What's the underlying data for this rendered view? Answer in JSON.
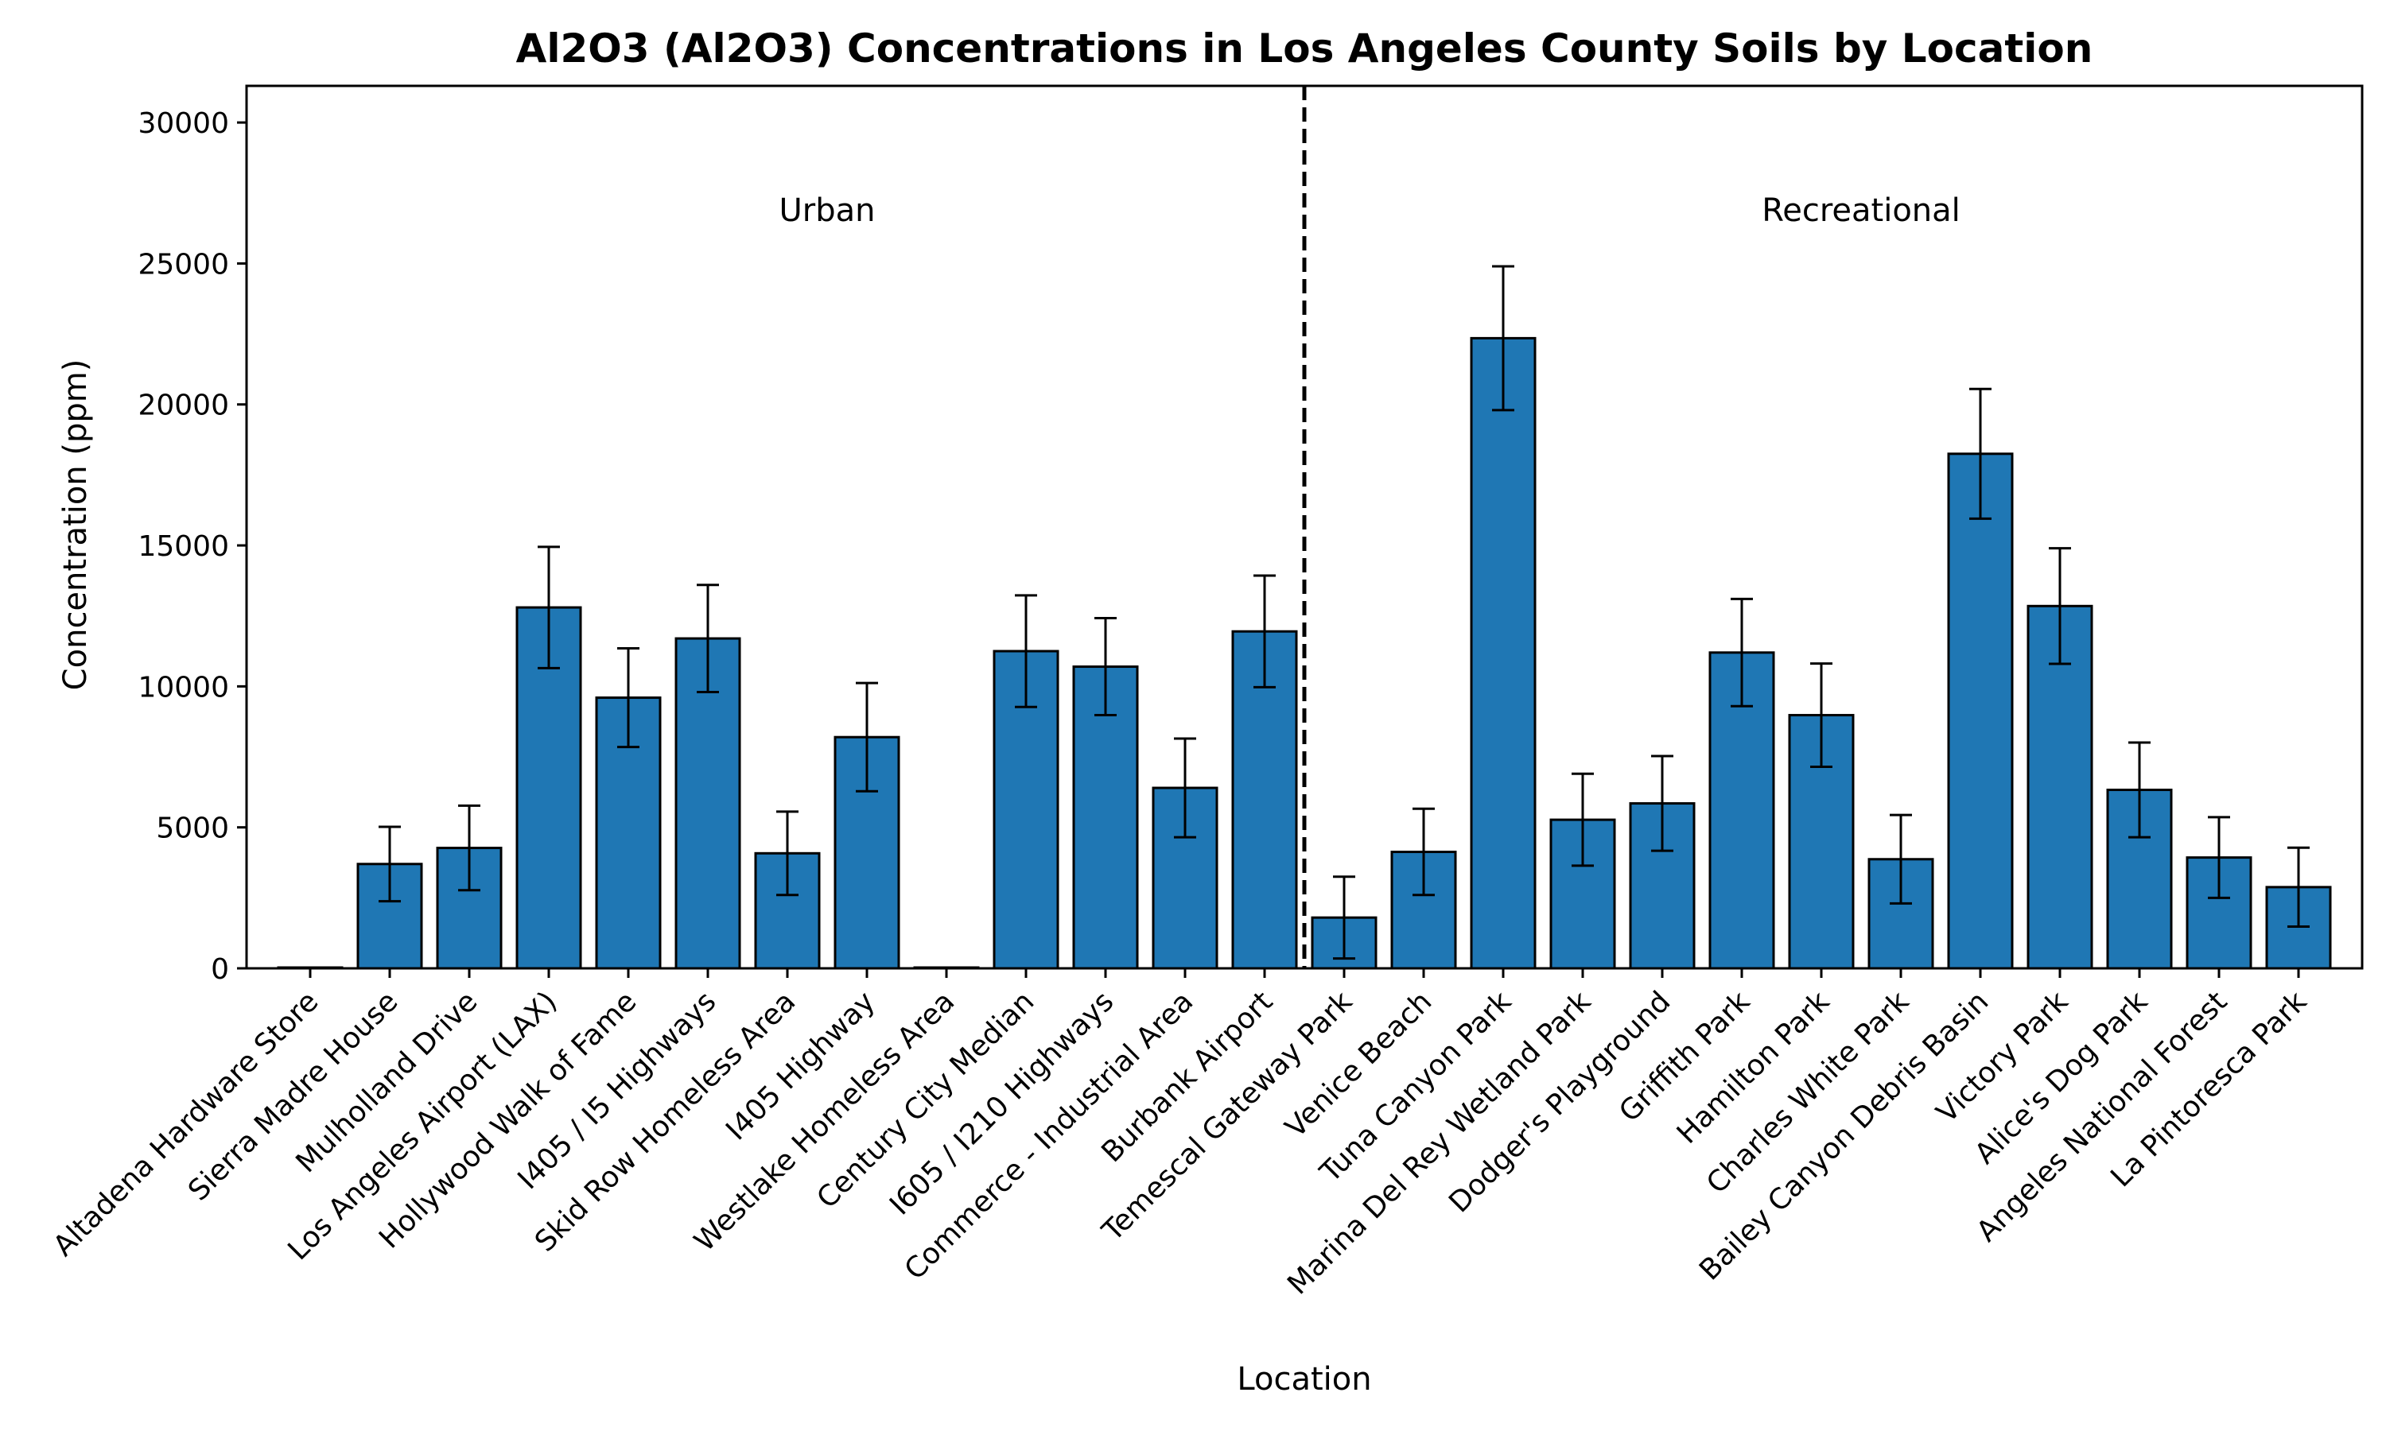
{
  "chart_data": {
    "type": "bar",
    "title": "Al2O3 (Al2O3) Concentrations in Los Angeles County Soils by Location",
    "xlabel": "Location",
    "ylabel": "Concentration (ppm)",
    "ylim": [
      0,
      31300
    ],
    "yticks": [
      0,
      5000,
      10000,
      15000,
      20000,
      25000,
      30000
    ],
    "grid": false,
    "legend": "none",
    "colors": {
      "bar": "#1f77b4",
      "edge": "#000000",
      "error_bar": "#000000",
      "divider": "#000000"
    },
    "group_labels": [
      {
        "label": "Urban",
        "category_center": 6.5
      },
      {
        "label": "Recreational",
        "category_center": 19.5
      }
    ],
    "divider_after_category": 12.5,
    "categories": [
      "Altadena Hardware Store",
      "Sierra Madre House",
      "Mulholland Drive",
      "Los Angeles Airport (LAX)",
      "Hollywood Walk of Fame",
      "I405 / I5 Highways",
      "Skid Row Homeless Area",
      "I405 Highway",
      "Westlake Homeless Area",
      "Century City Median",
      "I605 / I210 Highways",
      "Commerce - Industrial Area",
      "Burbank Airport",
      "Temescal Gateway Park",
      "Venice Beach",
      "Tuna Canyon Park",
      "Marina Del Rey Wetland Park",
      "Dodger's Playground",
      "Griffith Park",
      "Hamilton Park",
      "Charles White Park",
      "Bailey Canyon Debris Basin",
      "Victory Park",
      "Alice's Dog Park",
      "Angeles National Forest",
      "La Pintoresca Park"
    ],
    "values": [
      0,
      3700,
      4270,
      12800,
      9600,
      11700,
      4080,
      8200,
      0,
      11250,
      10700,
      6400,
      11950,
      1800,
      4130,
      22350,
      5270,
      5850,
      11200,
      8980,
      3870,
      18250,
      12850,
      6330,
      3930,
      2880
    ],
    "errors": [
      0,
      1320,
      1500,
      2150,
      1750,
      1900,
      1480,
      1920,
      0,
      1980,
      1720,
      1750,
      1980,
      1450,
      1530,
      2550,
      1630,
      1680,
      1900,
      1830,
      1570,
      2300,
      2050,
      1680,
      1430,
      1400
    ]
  }
}
